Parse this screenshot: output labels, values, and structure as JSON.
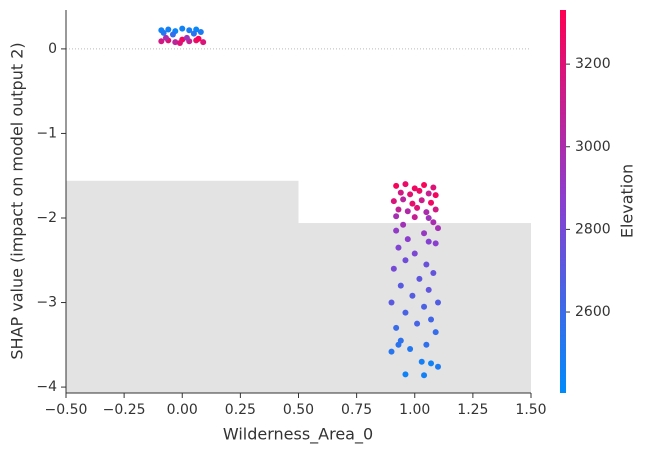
{
  "chart_data": {
    "type": "scatter",
    "x_label": "Wilderness_Area_0",
    "y_label": "SHAP value (impact on model output 2)",
    "colorbar_label": "Elevation",
    "xlim": [
      -0.5,
      1.5
    ],
    "ylim": [
      -4.07,
      0.46
    ],
    "clim": [
      2404,
      3331
    ],
    "colormap": [
      "#008bfb",
      "#8a3fd0",
      "#ff0052"
    ],
    "xticks": [
      {
        "value": -0.5,
        "label": "−0.50"
      },
      {
        "value": -0.25,
        "label": "−0.25"
      },
      {
        "value": 0,
        "label": "0.00"
      },
      {
        "value": 0.25,
        "label": "0.25"
      },
      {
        "value": 0.5,
        "label": "0.50"
      },
      {
        "value": 0.75,
        "label": "0.75"
      },
      {
        "value": 1,
        "label": "1.00"
      },
      {
        "value": 1.25,
        "label": "1.25"
      },
      {
        "value": 1.5,
        "label": "1.50"
      }
    ],
    "yticks": [
      {
        "value": -4,
        "label": "−4"
      },
      {
        "value": -3,
        "label": "−3"
      },
      {
        "value": -2,
        "label": "−2"
      },
      {
        "value": -1,
        "label": "−1"
      },
      0
    ],
    "cticks": [
      2600,
      2800,
      3000,
      3200
    ],
    "histogram": {
      "bins": [
        -0.5,
        0.5,
        1.5
      ],
      "tops": [
        -1.56,
        -2.06
      ],
      "color": "#e3e3e3"
    },
    "zero_line": 0,
    "series": [
      {
        "x": [
          -0.09,
          -0.06,
          -0.03,
          0.0,
          0.03,
          0.06,
          0.08,
          -0.08,
          0.05,
          -0.04,
          -0.09,
          -0.06,
          -0.03,
          0.0,
          0.03,
          0.06,
          0.09,
          -0.07,
          0.02,
          0.07,
          -0.01,
          0.92,
          0.96,
          1.0,
          1.04,
          1.08,
          0.94,
          0.98,
          1.02,
          1.06,
          1.09,
          0.91,
          0.95,
          0.99,
          1.03,
          1.07,
          0.93,
          0.97,
          1.01,
          1.05,
          1.09,
          0.92,
          1.0,
          1.06,
          0.95,
          1.08,
          0.92,
          1.04,
          1.1,
          0.97,
          1.06,
          0.93,
          1.09,
          1.0,
          0.96,
          1.05,
          0.91,
          1.08,
          1.02,
          0.94,
          1.06,
          0.99,
          0.9,
          1.04,
          1.1,
          0.96,
          1.07,
          0.92,
          1.01,
          1.09,
          0.94,
          0.98,
          1.05,
          0.9,
          1.03,
          1.07,
          1.1,
          0.96,
          1.04,
          0.93
        ],
        "y": [
          0.22,
          0.23,
          0.21,
          0.24,
          0.22,
          0.23,
          0.2,
          0.19,
          0.18,
          0.17,
          0.09,
          0.1,
          0.08,
          0.11,
          0.09,
          0.1,
          0.08,
          0.13,
          0.13,
          0.12,
          0.07,
          -1.62,
          -1.6,
          -1.65,
          -1.61,
          -1.64,
          -1.7,
          -1.72,
          -1.68,
          -1.71,
          -1.73,
          -1.8,
          -1.78,
          -1.83,
          -1.79,
          -1.82,
          -1.9,
          -1.92,
          -1.88,
          -1.93,
          -1.9,
          -1.98,
          -1.99,
          -2.0,
          -2.08,
          -2.05,
          -2.15,
          -2.18,
          -2.12,
          -2.25,
          -2.28,
          -2.35,
          -2.3,
          -2.42,
          -2.5,
          -2.55,
          -2.6,
          -2.65,
          -2.72,
          -2.8,
          -2.85,
          -2.92,
          -3.0,
          -3.05,
          -3.0,
          -3.12,
          -3.2,
          -3.3,
          -3.25,
          -3.35,
          -3.45,
          -3.55,
          -3.5,
          -3.58,
          -3.7,
          -3.72,
          -3.76,
          -3.85,
          -3.86,
          -3.5
        ],
        "c": [
          2450,
          2470,
          2440,
          2460,
          2480,
          2430,
          2500,
          2520,
          2550,
          2580,
          3150,
          3220,
          3050,
          3280,
          3100,
          3250,
          3180,
          3000,
          2950,
          3300,
          3200,
          3300,
          3250,
          3280,
          3310,
          3200,
          3150,
          3220,
          3260,
          3100,
          3290,
          3180,
          3050,
          3230,
          3120,
          3270,
          3080,
          3020,
          3200,
          3000,
          3150,
          2980,
          3100,
          2950,
          2960,
          2990,
          2900,
          2920,
          2970,
          2880,
          2850,
          2840,
          2870,
          2820,
          2780,
          2760,
          2800,
          2740,
          2720,
          2700,
          2730,
          2690,
          2710,
          2660,
          2680,
          2650,
          2630,
          2600,
          2640,
          2590,
          2560,
          2520,
          2570,
          2540,
          2480,
          2460,
          2500,
          2450,
          2470,
          2550
        ]
      }
    ]
  }
}
